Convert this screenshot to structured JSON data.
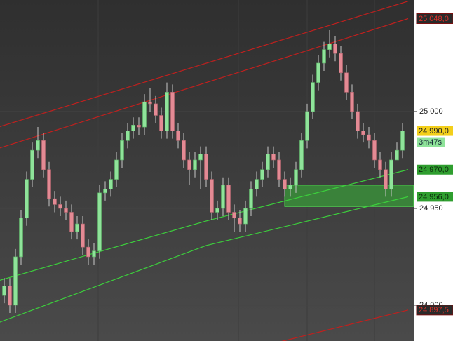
{
  "chart_data": {
    "type": "candlestick",
    "open": [
      24905,
      24910,
      24900,
      24925,
      24945,
      24965,
      24980,
      24985,
      24970,
      24955,
      24952,
      24950,
      24948,
      24938,
      24942,
      24930,
      24925,
      24928,
      24958,
      24960,
      24965,
      24975,
      24985,
      24990,
      24993,
      24992,
      25005,
      25004,
      24998,
      24990,
      25010,
      24990,
      24985,
      24975,
      24970,
      24975,
      24978,
      24965,
      24948,
      24950,
      24962,
      24948,
      24945,
      24942,
      24950,
      24960,
      24965,
      24970,
      24978,
      24975,
      24965,
      24960,
      24962,
      24970,
      24985,
      25000,
      25015,
      25025,
      25032,
      25035,
      25030,
      25020,
      25010,
      25000,
      24990,
      24988,
      24985,
      24975,
      24970,
      24960,
      24975,
      24980
    ],
    "high": [
      24914,
      24914,
      24929,
      24949,
      24969,
      24984,
      24992,
      24989,
      24974,
      24959,
      24956,
      24954,
      24952,
      24946,
      24946,
      24934,
      24932,
      24962,
      24964,
      24969,
      24979,
      24989,
      24994,
      24997,
      24997,
      25009,
      25012,
      25008,
      25002,
      25015,
      25014,
      24994,
      24989,
      24979,
      24979,
      24982,
      24982,
      24969,
      24954,
      24966,
      24966,
      24952,
      24949,
      24954,
      24964,
      24969,
      24974,
      24982,
      24982,
      24979,
      24969,
      24966,
      24974,
      24989,
      25004,
      25019,
      25029,
      25036,
      25042,
      25039,
      25034,
      25024,
      25014,
      25004,
      24994,
      24992,
      24989,
      24979,
      24974,
      24979,
      24984,
      24994
    ],
    "low": [
      24901,
      24896,
      24896,
      24921,
      24941,
      24961,
      24976,
      24966,
      24951,
      24948,
      24946,
      24944,
      24934,
      24934,
      24926,
      24921,
      24921,
      24924,
      24954,
      24956,
      24961,
      24971,
      24981,
      24986,
      24988,
      24988,
      25000,
      24994,
      24986,
      24986,
      24986,
      24981,
      24971,
      24962,
      24966,
      24960,
      24961,
      24944,
      24944,
      24946,
      24944,
      24938,
      24938,
      24938,
      24946,
      24956,
      24961,
      24966,
      24971,
      24961,
      24956,
      24956,
      24958,
      24966,
      24981,
      24996,
      25011,
      25021,
      25028,
      25026,
      25016,
      25006,
      24996,
      24986,
      24984,
      24981,
      24971,
      24966,
      24956,
      24956,
      24976,
      24976
    ],
    "close": [
      24910,
      24900,
      24925,
      24945,
      24965,
      24980,
      24985,
      24970,
      24955,
      24952,
      24950,
      24948,
      24938,
      24942,
      24930,
      24925,
      24928,
      24958,
      24960,
      24965,
      24975,
      24985,
      24990,
      24993,
      24992,
      25005,
      25004,
      24998,
      24990,
      25010,
      24990,
      24985,
      24975,
      24970,
      24975,
      24978,
      24965,
      24948,
      24950,
      24962,
      24948,
      24945,
      24942,
      24950,
      24960,
      24965,
      24970,
      24978,
      24975,
      24965,
      24960,
      24962,
      24970,
      24985,
      25000,
      25015,
      25025,
      25032,
      25035,
      25030,
      25020,
      25010,
      25000,
      24990,
      24988,
      24985,
      24975,
      24970,
      24960,
      24975,
      24980,
      24990
    ],
    "up_color": "#8fe39a",
    "down_color": "#e48a94",
    "ylim": [
      24881.5,
      25057.6
    ],
    "yticks": [
      {
        "value": 24900,
        "label": "24 900"
      },
      {
        "value": 24950,
        "label": "24 950"
      },
      {
        "value": 25000,
        "label": "25 000"
      }
    ],
    "overlays": [
      {
        "color": "#c0201e",
        "x": [
          -1,
          72
        ],
        "values": [
          24992,
          25057
        ]
      },
      {
        "color": "#c0201e",
        "x": [
          -1,
          72
        ],
        "values": [
          24981,
          25048
        ],
        "value_labels": [
          null,
          "25 048,0"
        ]
      },
      {
        "color": "#3ccf3c",
        "x": [
          -1,
          36,
          72
        ],
        "values": [
          24912.7,
          24943.5,
          24970
        ],
        "value_labels": [
          null,
          null,
          "24 970,0"
        ]
      },
      {
        "color": "#3ccf3c",
        "x": [
          -1,
          36,
          72
        ],
        "values": [
          24891,
          24930.8,
          24956
        ],
        "value_labels": [
          null,
          null,
          "24 956,0"
        ]
      },
      {
        "color": "#c0201e",
        "x": [
          49,
          72
        ],
        "values": [
          24881,
          24897.5
        ],
        "value_labels": [
          null,
          "24 897,5"
        ]
      }
    ],
    "zone": {
      "color": "#3a9a3a",
      "x": [
        50,
        73
      ],
      "values": [
        24951,
        24962
      ]
    },
    "last_price": {
      "value": 24990,
      "label": "24 990,0",
      "timer": "3m47s"
    }
  }
}
